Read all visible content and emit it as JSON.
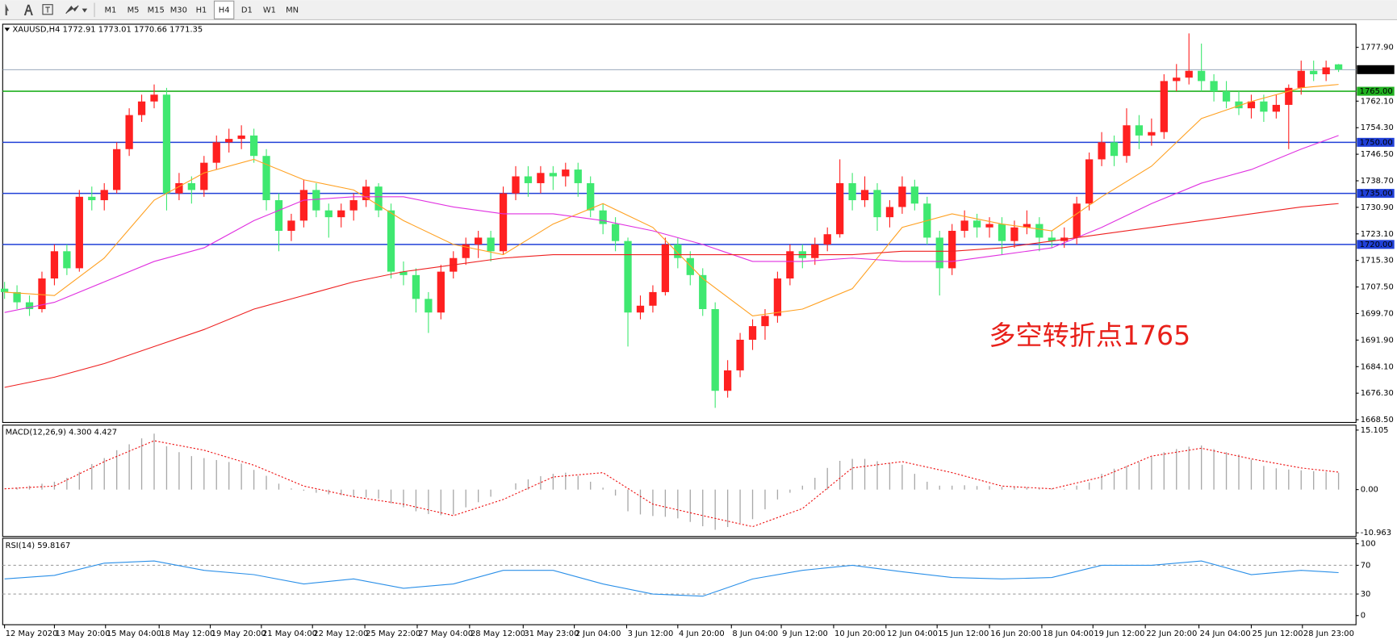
{
  "toolbar": {
    "timeframes": [
      "M1",
      "M5",
      "M15",
      "M30",
      "H1",
      "H4",
      "D1",
      "W1",
      "MN"
    ],
    "active_index": 5
  },
  "chart_data": [
    {
      "type": "candlestick",
      "title": "XAUUSD,H4",
      "up_color": "#ff2020",
      "down_color": "#3fe870",
      "open": [
        1707,
        1706,
        1703,
        1701,
        1710,
        1718,
        1713,
        1734,
        1733,
        1736,
        1748,
        1758,
        1762,
        1764,
        1735,
        1738,
        1736,
        1744,
        1750,
        1751,
        1752,
        1746,
        1733,
        1724,
        1727,
        1736,
        1730,
        1728,
        1730,
        1733,
        1737,
        1730,
        1712,
        1711,
        1704,
        1700,
        1712,
        1716,
        1720,
        1722,
        1718,
        1735,
        1740,
        1738,
        1741,
        1740,
        1742,
        1738,
        1730,
        1726,
        1721,
        1700,
        1702,
        1706,
        1720,
        1716,
        1711,
        1701,
        1677,
        1683,
        1692,
        1696,
        1699,
        1710,
        1718,
        1716,
        1720,
        1723,
        1738,
        1733,
        1736,
        1728,
        1731,
        1737,
        1732,
        1722,
        1713,
        1724,
        1727,
        1725,
        1726,
        1721,
        1725,
        1726,
        1722,
        1721,
        1722,
        1732,
        1745,
        1750,
        1746,
        1755,
        1752,
        1753,
        1768,
        1769,
        1771,
        1768,
        1765,
        1762,
        1760,
        1762,
        1759,
        1761,
        1766,
        1771,
        1770,
        1772.91
      ],
      "high": [
        1709,
        1708,
        1705,
        1712,
        1720,
        1720,
        1736,
        1737,
        1738,
        1750,
        1760,
        1764,
        1767,
        1766,
        1741,
        1740,
        1746,
        1752,
        1754,
        1755,
        1754,
        1748,
        1735,
        1729,
        1739,
        1738,
        1732,
        1732,
        1735,
        1739,
        1738,
        1732,
        1715,
        1713,
        1706,
        1714,
        1718,
        1722,
        1724,
        1724,
        1737,
        1743,
        1743,
        1743,
        1743,
        1744,
        1744,
        1740,
        1732,
        1728,
        1722,
        1705,
        1708,
        1722,
        1722,
        1718,
        1713,
        1703,
        1686,
        1694,
        1698,
        1701,
        1712,
        1720,
        1720,
        1722,
        1725,
        1745,
        1741,
        1740,
        1738,
        1733,
        1740,
        1739,
        1734,
        1724,
        1726,
        1730,
        1729,
        1728,
        1728,
        1727,
        1730,
        1728,
        1724,
        1725,
        1734,
        1747,
        1753,
        1752,
        1760,
        1758,
        1757,
        1770,
        1773,
        1782,
        1779,
        1770,
        1768,
        1765,
        1764,
        1764,
        1764,
        1767,
        1774,
        1774,
        1774,
        1773.01
      ],
      "low": [
        1704,
        1701,
        1699,
        1700,
        1708,
        1711,
        1712,
        1730,
        1730,
        1735,
        1746,
        1756,
        1760,
        1730,
        1733,
        1732,
        1734,
        1742,
        1747,
        1748,
        1744,
        1730,
        1718,
        1721,
        1725,
        1728,
        1722,
        1725,
        1727,
        1731,
        1728,
        1710,
        1708,
        1700,
        1694,
        1698,
        1710,
        1714,
        1716,
        1715,
        1717,
        1733,
        1734,
        1735,
        1736,
        1737,
        1734,
        1728,
        1723,
        1718,
        1690,
        1698,
        1700,
        1705,
        1713,
        1708,
        1699,
        1672,
        1675,
        1681,
        1689,
        1692,
        1697,
        1708,
        1713,
        1714,
        1718,
        1722,
        1730,
        1731,
        1724,
        1725,
        1729,
        1730,
        1720,
        1705,
        1711,
        1722,
        1722,
        1722,
        1717,
        1719,
        1723,
        1718,
        1719,
        1719,
        1720,
        1730,
        1743,
        1743,
        1744,
        1748,
        1749,
        1751,
        1765,
        1767,
        1765,
        1762,
        1760,
        1758,
        1757,
        1756,
        1757,
        1748,
        1764,
        1768,
        1768,
        1770.66
      ],
      "close": [
        1706,
        1703,
        1701,
        1710,
        1718,
        1713,
        1734,
        1733,
        1736,
        1748,
        1758,
        1762,
        1764,
        1735,
        1738,
        1736,
        1744,
        1750,
        1751,
        1752,
        1746,
        1733,
        1724,
        1727,
        1736,
        1730,
        1728,
        1730,
        1733,
        1737,
        1730,
        1712,
        1711,
        1704,
        1700,
        1712,
        1716,
        1720,
        1722,
        1718,
        1735,
        1740,
        1738,
        1741,
        1740,
        1742,
        1738,
        1730,
        1726,
        1721,
        1700,
        1702,
        1706,
        1720,
        1716,
        1711,
        1701,
        1677,
        1683,
        1692,
        1696,
        1699,
        1710,
        1718,
        1716,
        1720,
        1723,
        1738,
        1733,
        1736,
        1728,
        1731,
        1737,
        1732,
        1722,
        1713,
        1724,
        1727,
        1725,
        1726,
        1721,
        1725,
        1726,
        1722,
        1721,
        1722,
        1732,
        1745,
        1750,
        1746,
        1755,
        1752,
        1753,
        1768,
        1769,
        1771,
        1768,
        1765,
        1762,
        1760,
        1762,
        1759,
        1761,
        1766,
        1771,
        1770,
        1772,
        1771.35
      ],
      "price_line_color": "#8a9bb0",
      "moving_averages": [
        {
          "color": "#ffa020",
          "x": [
            0,
            4,
            8,
            12,
            16,
            20,
            24,
            28,
            32,
            36,
            40,
            44,
            48,
            52,
            56,
            60,
            64,
            68,
            72,
            76,
            80,
            84,
            88,
            92,
            96,
            100,
            104,
            107
          ],
          "values": [
            1706,
            1705,
            1716,
            1733,
            1741,
            1745,
            1739,
            1736,
            1727,
            1720,
            1717,
            1726,
            1732,
            1725,
            1710,
            1699,
            1701,
            1707,
            1725,
            1729,
            1726,
            1724,
            1734,
            1743,
            1757,
            1762,
            1766,
            1767
          ]
        },
        {
          "color": "#e030e0",
          "x": [
            0,
            4,
            8,
            12,
            16,
            20,
            24,
            28,
            32,
            36,
            40,
            44,
            48,
            52,
            56,
            60,
            64,
            68,
            72,
            76,
            80,
            84,
            88,
            92,
            96,
            100,
            104,
            107
          ],
          "values": [
            1700,
            1703,
            1709,
            1715,
            1719,
            1727,
            1733,
            1734,
            1734,
            1731,
            1729,
            1729,
            1727,
            1724,
            1720,
            1715,
            1715,
            1716,
            1715,
            1715,
            1717,
            1719,
            1725,
            1732,
            1738,
            1742,
            1748,
            1752
          ]
        },
        {
          "color": "#ee2020",
          "x": [
            0,
            4,
            8,
            12,
            16,
            20,
            24,
            28,
            32,
            36,
            40,
            44,
            48,
            52,
            56,
            60,
            64,
            68,
            72,
            76,
            80,
            84,
            88,
            92,
            96,
            100,
            104,
            107
          ],
          "values": [
            1678,
            1681,
            1685,
            1690,
            1695,
            1701,
            1705,
            1709,
            1712,
            1714,
            1716,
            1717,
            1717,
            1717,
            1717,
            1717,
            1717,
            1717,
            1718,
            1718,
            1719,
            1721,
            1723,
            1725,
            1727,
            1729,
            1731,
            1732
          ]
        }
      ],
      "levels": [
        {
          "value": 1765,
          "label": "1765.00",
          "color": "#20b020"
        },
        {
          "value": 1750,
          "label": "1750.00",
          "color": "#2040d8"
        },
        {
          "value": 1735,
          "label": "1735.00",
          "color": "#2040d8"
        },
        {
          "value": 1720,
          "label": "1720.00",
          "color": "#2040d8"
        }
      ],
      "annotation": {
        "text": "多空转折点1765",
        "color": "#e8201a"
      },
      "ylim": [
        1667.7,
        1784.7
      ],
      "yticks": [
        {
          "value": 1777.9,
          "label": "1777.90"
        },
        {
          "value": 1762.1,
          "label": "1762.10"
        },
        {
          "value": 1754.3,
          "label": "1754.30"
        },
        {
          "value": 1746.5,
          "label": "1746.50"
        },
        {
          "value": 1738.7,
          "label": "1738.70"
        },
        {
          "value": 1730.9,
          "label": "1730.90"
        },
        {
          "value": 1723.1,
          "label": "1723.10"
        },
        {
          "value": 1715.3,
          "label": "1715.30"
        },
        {
          "value": 1707.5,
          "label": "1707.50"
        },
        {
          "value": 1699.7,
          "label": "1699.70"
        },
        {
          "value": 1691.9,
          "label": "1691.90"
        },
        {
          "value": 1684.1,
          "label": "1684.10"
        },
        {
          "value": 1676.3,
          "label": "1676.30"
        },
        {
          "value": 1668.5,
          "label": "1668.50"
        }
      ],
      "xlim": [
        -0.15,
        108.4
      ],
      "xticks": [
        {
          "value": 0,
          "label": "12 May 2020"
        },
        {
          "value": 4,
          "label": "13 May 20:00"
        },
        {
          "value": 8.1,
          "label": "15 May 04:00"
        },
        {
          "value": 12.4,
          "label": "18 May 12:00"
        },
        {
          "value": 16.5,
          "label": "19 May 20:00"
        },
        {
          "value": 20.6,
          "label": "21 May 04:00"
        },
        {
          "value": 24.7,
          "label": "22 May 12:00"
        },
        {
          "value": 28.9,
          "label": "25 May 22:00"
        },
        {
          "value": 33.1,
          "label": "27 May 04:00"
        },
        {
          "value": 37.3,
          "label": "28 May 12:00"
        },
        {
          "value": 41.6,
          "label": "31 May 23:00"
        },
        {
          "value": 45.7,
          "label": "2 Jun 04:00"
        },
        {
          "value": 49.9,
          "label": "3 Jun 12:00"
        },
        {
          "value": 54,
          "label": "4 Jun 20:00"
        },
        {
          "value": 58.3,
          "label": "8 Jun 04:00"
        },
        {
          "value": 62.3,
          "label": "9 Jun 12:00"
        },
        {
          "value": 66.5,
          "label": "10 Jun 20:00"
        },
        {
          "value": 70.7,
          "label": "12 Jun 04:00"
        },
        {
          "value": 74.8,
          "label": "15 Jun 12:00"
        },
        {
          "value": 79,
          "label": "16 Jun 20:00"
        },
        {
          "value": 83.2,
          "label": "18 Jun 04:00"
        },
        {
          "value": 87.3,
          "label": "19 Jun 12:00"
        },
        {
          "value": 91.5,
          "label": "22 Jun 20:00"
        },
        {
          "value": 95.8,
          "label": "24 Jun 04:00"
        },
        {
          "value": 100,
          "label": "25 Jun 12:00"
        },
        {
          "value": 104.1,
          "label": "28 Jun 23:00"
        }
      ]
    },
    {
      "type": "macd",
      "title": "MACD(12,26,9) 4.300 4.427",
      "histogram": {
        "color": "#a8a8a8",
        "values": [
          0,
          0.5,
          1,
          1.5,
          2,
          3,
          4.5,
          6.5,
          8,
          10,
          11.5,
          13,
          14.2,
          11,
          9.5,
          8.5,
          8,
          7.5,
          7,
          6.6,
          5,
          3.5,
          1.5,
          0.3,
          -0.3,
          -0.8,
          -1.2,
          -1.4,
          -1.8,
          -2,
          -2.3,
          -3.5,
          -4.5,
          -5.5,
          -6.2,
          -6.5,
          -6.3,
          -4.5,
          -3.2,
          -1.8,
          0,
          1.6,
          2.6,
          3.4,
          4,
          4.3,
          3.5,
          2,
          0.5,
          -1.5,
          -5.5,
          -6.3,
          -6.7,
          -6.9,
          -7.3,
          -8.2,
          -9.3,
          -10.2,
          -9.5,
          -8.5,
          -7.5,
          -5,
          -2.5,
          -0.8,
          1,
          3,
          5.5,
          7.3,
          7.8,
          7.8,
          7.2,
          6.8,
          6.3,
          4,
          2,
          1,
          1,
          1.1,
          0.9,
          0.9,
          0.7,
          0.6,
          0.6,
          0.4,
          0.3,
          0.2,
          1,
          1.8,
          4,
          5.3,
          6,
          7,
          8.3,
          9.5,
          10.3,
          10.9,
          11.2,
          10.3,
          9.5,
          8.9,
          7.6,
          6,
          5.4,
          5.1,
          4.9,
          4.7,
          4.5,
          4.3
        ]
      },
      "signal": {
        "color": "#ee1010",
        "x": [
          0,
          4,
          8,
          12,
          16,
          20,
          24,
          28,
          32,
          36,
          40,
          44,
          48,
          52,
          56,
          60,
          64,
          68,
          72,
          76,
          80,
          84,
          88,
          92,
          96,
          100,
          104,
          107
        ],
        "values": [
          0.2,
          0.9,
          7.1,
          12.4,
          10,
          6.2,
          0.9,
          -1.8,
          -3.7,
          -6.6,
          -2.5,
          3.2,
          4.3,
          -3.7,
          -6.6,
          -9.4,
          -4.8,
          5.5,
          7.1,
          4.3,
          0.9,
          0.2,
          3.2,
          8.5,
          10.5,
          7.8,
          5.5,
          4.427
        ]
      },
      "ylim": [
        -11.9,
        16.36
      ],
      "yticks": [
        15.105,
        {
          "value": 0,
          "label": "0.00"
        },
        -10.963
      ]
    },
    {
      "type": "rsi",
      "title": "RSI(14) 59.8167",
      "line": {
        "color": "#2a8fe8",
        "x": [
          0,
          4,
          8,
          12,
          16,
          20,
          24,
          28,
          32,
          36,
          40,
          44,
          48,
          52,
          56,
          60,
          64,
          68,
          72,
          76,
          80,
          84,
          88,
          92,
          96,
          100,
          104,
          107
        ],
        "values": [
          51,
          56,
          73,
          76,
          63,
          57,
          44,
          51,
          38,
          44,
          63,
          63,
          44,
          30,
          27,
          51,
          63,
          70,
          61,
          53,
          51,
          53,
          70,
          70,
          76,
          57,
          63,
          59.8167
        ]
      },
      "dashed_levels": [
        70,
        30
      ],
      "ylim": [
        -12.7,
        107.6
      ],
      "yticks": [
        100,
        70,
        30,
        0
      ]
    }
  ]
}
